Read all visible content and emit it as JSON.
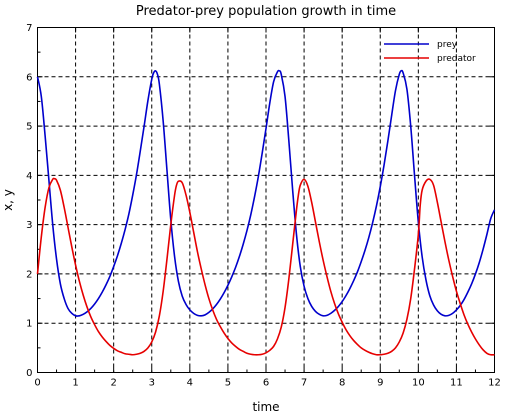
{
  "chart_data": {
    "type": "line",
    "title": "Predator-prey population growth in time",
    "xlabel": "time",
    "ylabel": "x, y",
    "xlim": [
      0,
      12
    ],
    "ylim": [
      0,
      7
    ],
    "xticks": [
      "0",
      "1",
      "2",
      "3",
      "4",
      "5",
      "6",
      "7",
      "8",
      "9",
      "10",
      "11",
      "12"
    ],
    "yticks": [
      "0",
      "1",
      "2",
      "3",
      "4",
      "5",
      "6",
      "7"
    ],
    "grid": true,
    "grid_style": "dashed",
    "legend_position": "top-right",
    "series": [
      {
        "name": "prey",
        "color": "#0000cc",
        "x": [
          0,
          0.1,
          0.2,
          0.3,
          0.4,
          0.5,
          0.6,
          0.7,
          0.8,
          0.9,
          1.0,
          1.1,
          1.2,
          1.3,
          1.4,
          1.5,
          1.6,
          1.7,
          1.8,
          1.9,
          2.0,
          2.1,
          2.2,
          2.3,
          2.4,
          2.5,
          2.6,
          2.7,
          2.8,
          2.9,
          3.0,
          3.05,
          3.1,
          3.15,
          3.2,
          3.3,
          3.4,
          3.5,
          3.6,
          3.7,
          3.8,
          3.9,
          4.0,
          4.1,
          4.2,
          4.3,
          4.4,
          4.5,
          4.6,
          4.7,
          4.8,
          4.9,
          5.0,
          5.1,
          5.2,
          5.3,
          5.4,
          5.5,
          5.6,
          5.7,
          5.8,
          5.9,
          6.0,
          6.1,
          6.2,
          6.3,
          6.35,
          6.4,
          6.5,
          6.6,
          6.7,
          6.8,
          6.9,
          7.0,
          7.1,
          7.2,
          7.3,
          7.4,
          7.5,
          7.6,
          7.7,
          7.8,
          7.9,
          8.0,
          8.1,
          8.2,
          8.3,
          8.4,
          8.5,
          8.6,
          8.7,
          8.8,
          8.9,
          9.0,
          9.1,
          9.2,
          9.3,
          9.4,
          9.5,
          9.55,
          9.6,
          9.7,
          9.8,
          9.9,
          10.0,
          10.1,
          10.2,
          10.3,
          10.4,
          10.5,
          10.6,
          10.7,
          10.8,
          10.9,
          11.0,
          11.1,
          11.2,
          11.3,
          11.4,
          11.5,
          11.6,
          11.7,
          11.8,
          11.9,
          12.0
        ],
        "values": [
          6.0,
          5.6,
          4.8,
          3.9,
          3.0,
          2.3,
          1.8,
          1.5,
          1.3,
          1.2,
          1.15,
          1.15,
          1.18,
          1.23,
          1.3,
          1.39,
          1.5,
          1.63,
          1.78,
          1.95,
          2.15,
          2.37,
          2.62,
          2.9,
          3.22,
          3.6,
          4.02,
          4.5,
          5.0,
          5.52,
          5.95,
          6.08,
          6.12,
          6.05,
          5.85,
          5.1,
          4.1,
          3.1,
          2.35,
          1.85,
          1.55,
          1.38,
          1.27,
          1.2,
          1.16,
          1.15,
          1.17,
          1.22,
          1.29,
          1.38,
          1.49,
          1.62,
          1.77,
          1.94,
          2.13,
          2.35,
          2.6,
          2.88,
          3.2,
          3.57,
          3.98,
          4.45,
          4.95,
          5.47,
          5.9,
          6.1,
          6.12,
          6.05,
          5.6,
          4.7,
          3.7,
          2.8,
          2.15,
          1.75,
          1.5,
          1.34,
          1.24,
          1.18,
          1.15,
          1.16,
          1.2,
          1.26,
          1.34,
          1.44,
          1.56,
          1.7,
          1.86,
          2.04,
          2.25,
          2.48,
          2.74,
          3.04,
          3.38,
          3.77,
          4.21,
          4.7,
          5.22,
          5.72,
          6.05,
          6.12,
          6.08,
          5.75,
          5.0,
          4.0,
          3.05,
          2.35,
          1.88,
          1.56,
          1.37,
          1.25,
          1.18,
          1.15,
          1.16,
          1.2,
          1.27,
          1.36,
          1.48,
          1.63,
          1.8,
          2.0,
          2.23,
          2.5,
          2.8,
          3.12,
          3.3
        ]
      },
      {
        "name": "predator",
        "color": "#e60000",
        "x": [
          0,
          0.1,
          0.2,
          0.3,
          0.4,
          0.45,
          0.5,
          0.6,
          0.7,
          0.8,
          0.9,
          1.0,
          1.1,
          1.2,
          1.3,
          1.4,
          1.5,
          1.6,
          1.7,
          1.8,
          1.9,
          2.0,
          2.1,
          2.2,
          2.3,
          2.4,
          2.5,
          2.6,
          2.7,
          2.8,
          2.9,
          3.0,
          3.1,
          3.2,
          3.3,
          3.4,
          3.5,
          3.6,
          3.65,
          3.7,
          3.8,
          3.9,
          4.0,
          4.1,
          4.2,
          4.3,
          4.4,
          4.5,
          4.6,
          4.7,
          4.8,
          4.9,
          5.0,
          5.1,
          5.2,
          5.3,
          5.4,
          5.5,
          5.6,
          5.7,
          5.8,
          5.9,
          6.0,
          6.1,
          6.2,
          6.3,
          6.4,
          6.5,
          6.6,
          6.7,
          6.8,
          6.85,
          6.9,
          7.0,
          7.1,
          7.2,
          7.3,
          7.4,
          7.5,
          7.6,
          7.7,
          7.8,
          7.9,
          8.0,
          8.1,
          8.2,
          8.3,
          8.4,
          8.5,
          8.6,
          8.7,
          8.8,
          8.9,
          9.0,
          9.1,
          9.2,
          9.3,
          9.4,
          9.5,
          9.6,
          9.7,
          9.8,
          9.9,
          10.0,
          10.05,
          10.1,
          10.2,
          10.3,
          10.4,
          10.5,
          10.6,
          10.7,
          10.8,
          10.9,
          11.0,
          11.1,
          11.2,
          11.3,
          11.4,
          11.5,
          11.6,
          11.7,
          11.8,
          11.9,
          12.0
        ],
        "values": [
          2.0,
          2.75,
          3.35,
          3.75,
          3.92,
          3.93,
          3.9,
          3.7,
          3.35,
          2.95,
          2.55,
          2.18,
          1.85,
          1.57,
          1.33,
          1.13,
          0.97,
          0.83,
          0.72,
          0.63,
          0.55,
          0.49,
          0.44,
          0.41,
          0.38,
          0.37,
          0.36,
          0.37,
          0.39,
          0.43,
          0.5,
          0.62,
          0.82,
          1.15,
          1.65,
          2.3,
          3.0,
          3.6,
          3.8,
          3.88,
          3.85,
          3.6,
          3.25,
          2.85,
          2.45,
          2.1,
          1.78,
          1.5,
          1.27,
          1.08,
          0.93,
          0.8,
          0.69,
          0.6,
          0.53,
          0.47,
          0.43,
          0.39,
          0.37,
          0.36,
          0.36,
          0.37,
          0.4,
          0.45,
          0.53,
          0.68,
          0.92,
          1.32,
          1.9,
          2.6,
          3.3,
          3.6,
          3.8,
          3.92,
          3.78,
          3.45,
          3.05,
          2.65,
          2.28,
          1.95,
          1.65,
          1.4,
          1.19,
          1.02,
          0.87,
          0.75,
          0.65,
          0.57,
          0.5,
          0.45,
          0.41,
          0.38,
          0.36,
          0.36,
          0.37,
          0.39,
          0.43,
          0.5,
          0.62,
          0.8,
          1.08,
          1.5,
          2.1,
          2.8,
          3.4,
          3.7,
          3.88,
          3.92,
          3.8,
          3.45,
          3.05,
          2.65,
          2.28,
          1.95,
          1.65,
          1.4,
          1.17,
          0.98,
          0.82,
          0.68,
          0.56,
          0.46,
          0.39,
          0.36,
          0.36
        ]
      }
    ]
  }
}
